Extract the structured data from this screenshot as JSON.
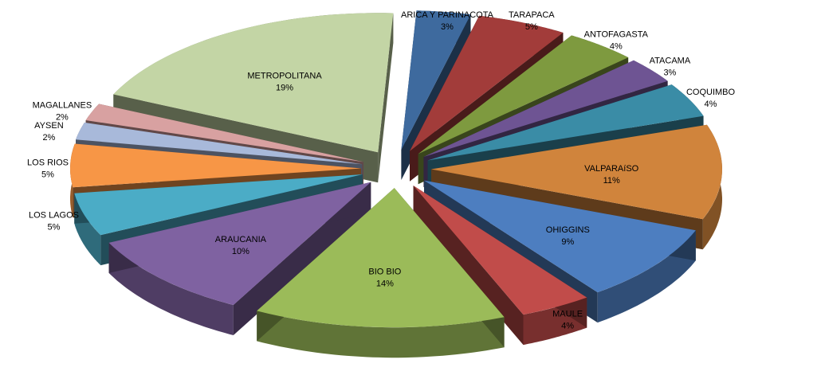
{
  "chart_data": {
    "type": "pie",
    "style": "3d-exploded",
    "legend": "none",
    "slices": [
      {
        "name": "ARICA Y PARINACOTA",
        "value": 3,
        "label": "3%",
        "color": "#3E6A9E"
      },
      {
        "name": "TARAPACA",
        "value": 5,
        "label": "5%",
        "color": "#A23C3A"
      },
      {
        "name": "ANTOFAGASTA",
        "value": 4,
        "label": "4%",
        "color": "#7E9A3F"
      },
      {
        "name": "ATACAMA",
        "value": 3,
        "label": "3%",
        "color": "#6E5493"
      },
      {
        "name": "COQUIMBO",
        "value": 4,
        "label": "4%",
        "color": "#3A8CA6"
      },
      {
        "name": "VALPARAíSO",
        "value": 11,
        "label": "11%",
        "color": "#D0843C"
      },
      {
        "name": "OHIGGINS",
        "value": 9,
        "label": "9%",
        "color": "#4D7EC0"
      },
      {
        "name": "MAULE",
        "value": 4,
        "label": "4%",
        "color": "#C14C4A"
      },
      {
        "name": "BIO BIO",
        "value": 14,
        "label": "14%",
        "color": "#9BBB59"
      },
      {
        "name": "ARAUCANIA",
        "value": 10,
        "label": "10%",
        "color": "#7F62A1"
      },
      {
        "name": "LOS LAGOS",
        "value": 5,
        "label": "5%",
        "color": "#4BACC6"
      },
      {
        "name": "LOS RIOS",
        "value": 5,
        "label": "5%",
        "color": "#F79646"
      },
      {
        "name": "AYSEN",
        "value": 2,
        "label": "2%",
        "color": "#A8B9DA"
      },
      {
        "name": "MAGALLANES",
        "value": 2,
        "label": "2%",
        "color": "#D8A1A1"
      },
      {
        "name": "METROPOLITANA",
        "value": 19,
        "label": "19%",
        "color": "#C3D5A5"
      }
    ]
  }
}
